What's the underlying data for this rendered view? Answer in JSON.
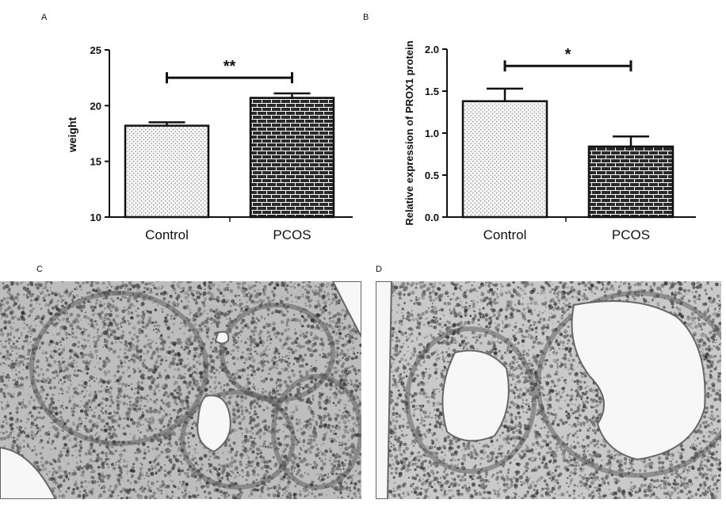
{
  "panels": {
    "a": "A",
    "b": "B",
    "c": "C",
    "d": "D"
  },
  "chart_data": [
    {
      "type": "bar",
      "panel": "A",
      "categories": [
        "Control",
        "PCOS"
      ],
      "values": [
        18.2,
        20.7
      ],
      "errors": [
        0.3,
        0.4
      ],
      "patterns": [
        "dots",
        "bricks"
      ],
      "title": "",
      "xlabel": "",
      "ylabel": "weight",
      "ylim": [
        10,
        25
      ],
      "yticks": [
        "10",
        "15",
        "20",
        "25"
      ],
      "significance": {
        "label": "**",
        "between": [
          "Control",
          "PCOS"
        ],
        "y": 22.5
      },
      "grid": false
    },
    {
      "type": "bar",
      "panel": "B",
      "categories": [
        "Control",
        "PCOS"
      ],
      "values": [
        1.38,
        0.84
      ],
      "errors": [
        0.15,
        0.12
      ],
      "patterns": [
        "dots",
        "bricks"
      ],
      "title": "",
      "xlabel": "",
      "ylabel": "Relative expression of PROX1 protein",
      "ylim": [
        0,
        2.0
      ],
      "yticks": [
        "0.0",
        "0.5",
        "1.0",
        "1.5",
        "2.0"
      ],
      "significance": {
        "label": "*",
        "between": [
          "Control",
          "PCOS"
        ],
        "y": 1.8
      },
      "grid": false
    }
  ],
  "colors": {
    "ink": "#111111",
    "dots_bg": "#f4f4f4",
    "brick_fill": "#2a2a2a",
    "brick_mortar": "#ffffff"
  },
  "micrographs": {
    "c": {
      "stain": "hematoxylin",
      "base": "#bdbdbd",
      "cell": "#3d3d3d"
    },
    "d": {
      "stain": "hematoxylin",
      "base": "#c9c9c9",
      "cell": "#383838"
    }
  }
}
